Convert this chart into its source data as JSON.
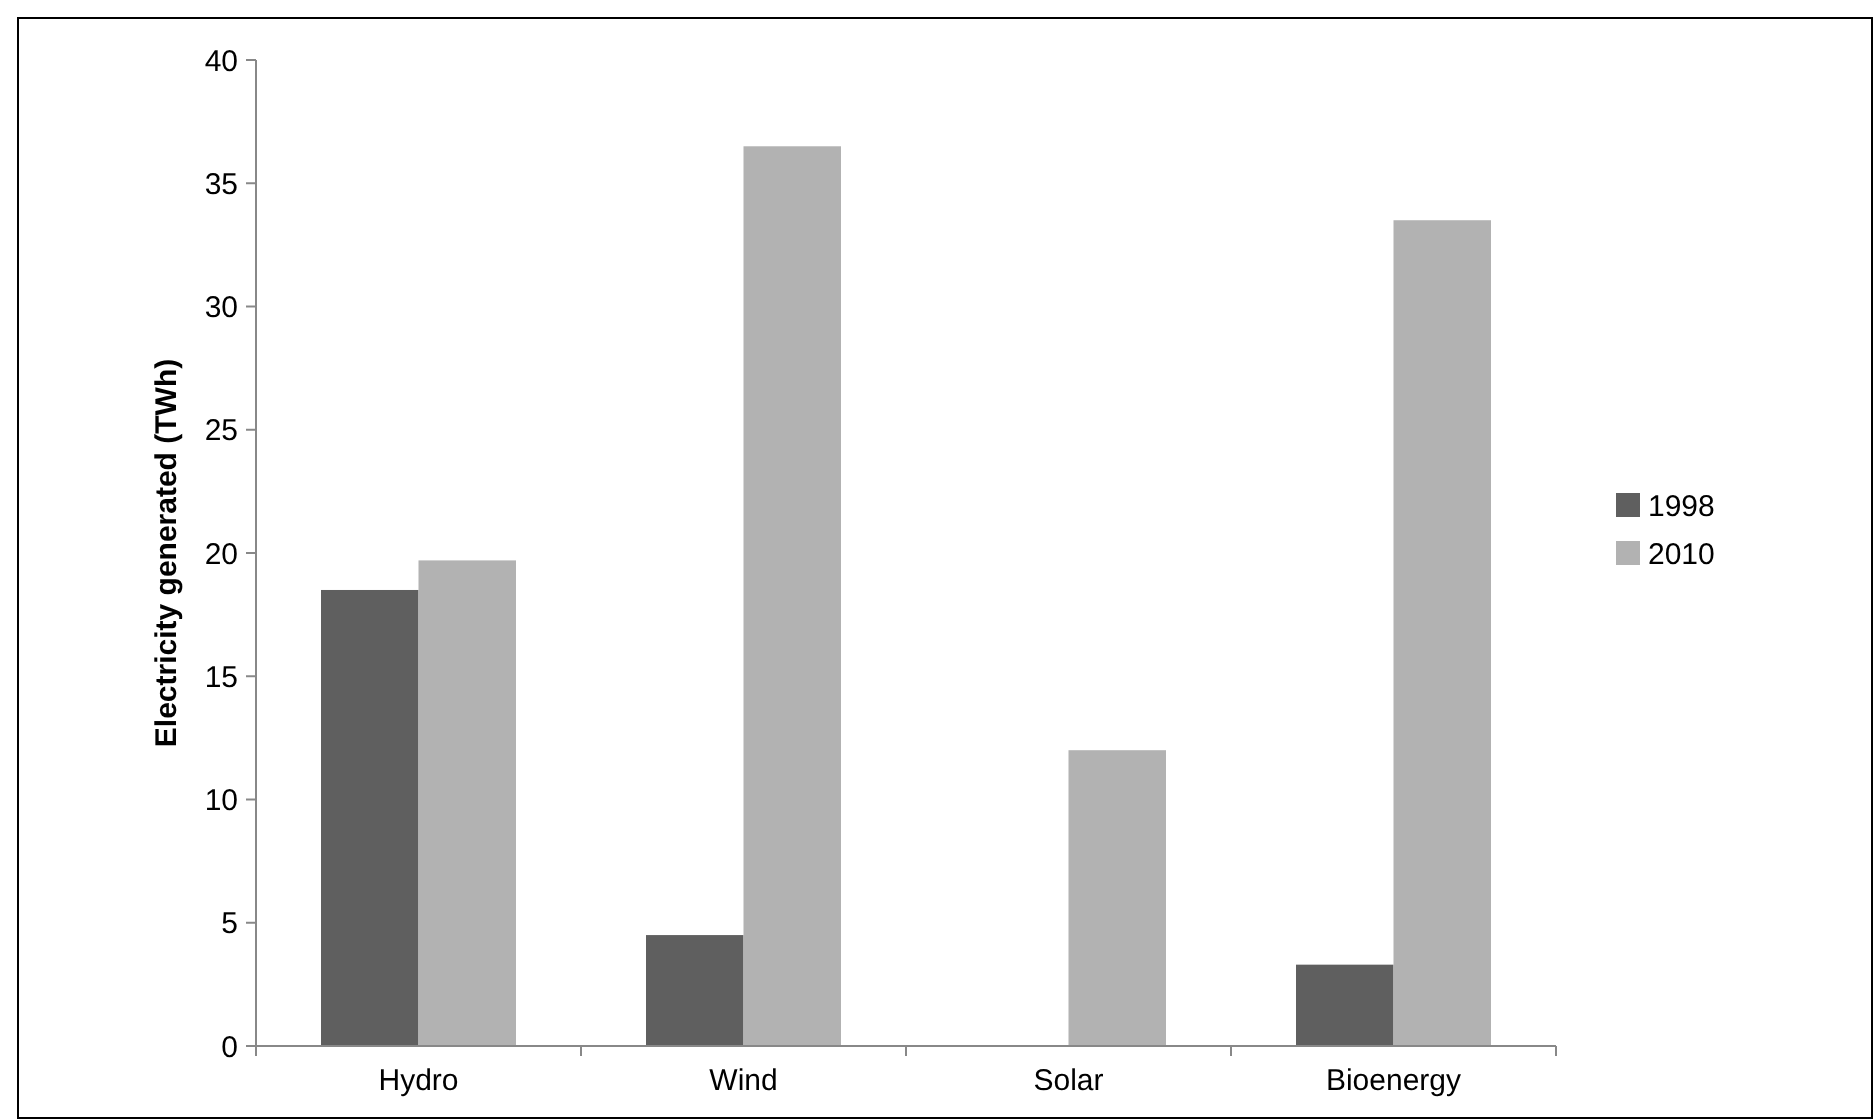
{
  "chart_data": {
    "type": "bar",
    "ylabel": "Electricity generated (TWh)",
    "categories": [
      "Hydro",
      "Wind",
      "Solar",
      "Bioenergy"
    ],
    "series": [
      {
        "name": "1998",
        "color": "#5f5f5f",
        "values": [
          18.5,
          4.5,
          0,
          3.3
        ]
      },
      {
        "name": "2010",
        "color": "#b2b2b2",
        "values": [
          19.7,
          36.5,
          12,
          33.5
        ]
      }
    ],
    "ylim": [
      0,
      40
    ],
    "yticks": [
      0,
      5,
      10,
      15,
      20,
      25,
      30,
      35,
      40
    ],
    "grid": false,
    "legend": "right"
  }
}
